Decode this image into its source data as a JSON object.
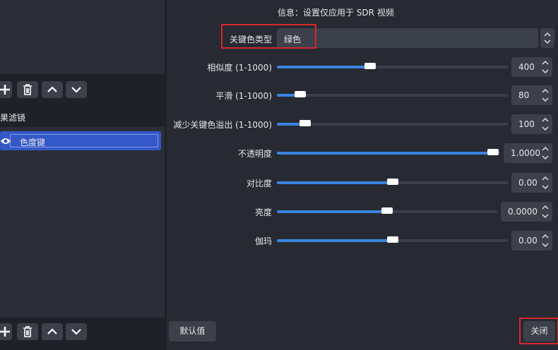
{
  "info": "信息：设置仅应用于 SDR 视频",
  "key_color_type": {
    "label": "关键色类型",
    "value": "绿色"
  },
  "filters_label": "果滤镜",
  "filters": [
    "色度键"
  ],
  "settings": [
    {
      "label": "相似度 (1-1000)",
      "value": "400"
    },
    {
      "label": "平滑 (1-1000)",
      "value": "80"
    },
    {
      "label": "减少关键色溢出 (1-1000)",
      "value": "100"
    },
    {
      "label": "不透明度",
      "value": "1.0000"
    },
    {
      "label": "对比度",
      "value": "0.00"
    },
    {
      "label": "亮度",
      "value": "0.0000"
    },
    {
      "label": "伽玛",
      "value": "0.00"
    }
  ],
  "buttons": {
    "defaults": "默认值",
    "close": "关闭"
  }
}
